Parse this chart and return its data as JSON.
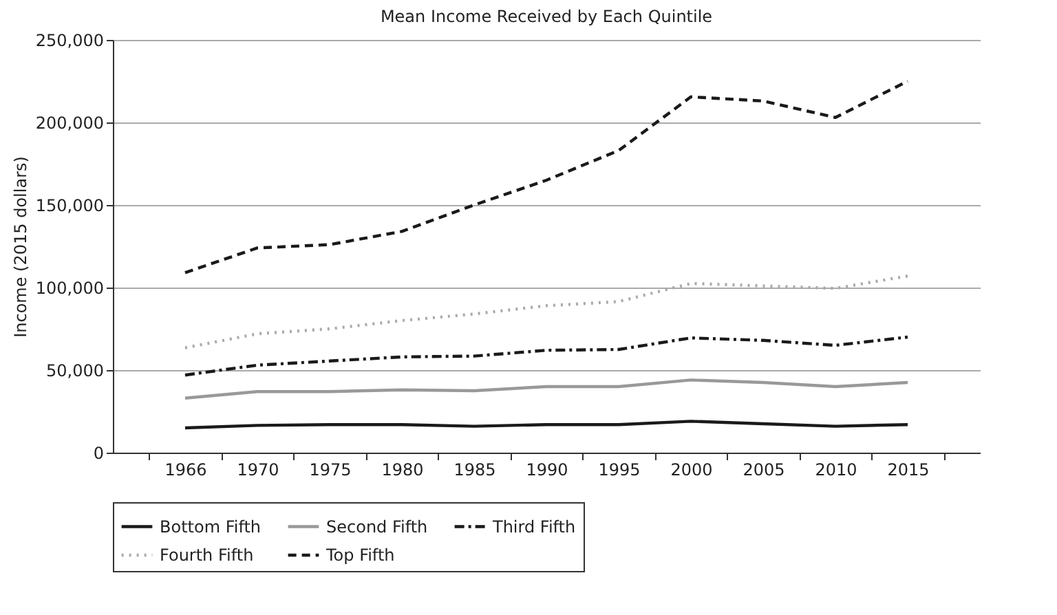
{
  "chart_data": {
    "type": "line",
    "title": "Mean Income Received by Each Quintile",
    "ylabel": "Income (2015 dollars)",
    "categories": [
      "1966",
      "1970",
      "1975",
      "1980",
      "1985",
      "1990",
      "1995",
      "2000",
      "2005",
      "2010",
      "2015"
    ],
    "series": [
      {
        "name": "Bottom Fifth",
        "color": "#1a1a1a",
        "line_style": "solid",
        "values": [
          15000,
          16500,
          17000,
          17000,
          16000,
          17000,
          17000,
          19000,
          17500,
          16000,
          17000
        ]
      },
      {
        "name": "Second Fifth",
        "color": "#999999",
        "line_style": "solid",
        "values": [
          33000,
          37000,
          37000,
          38000,
          37500,
          40000,
          40000,
          44000,
          42500,
          40000,
          42500
        ]
      },
      {
        "name": "Third Fifth",
        "color": "#1a1a1a",
        "line_style": "dashdot",
        "values": [
          47000,
          53000,
          55500,
          58000,
          58500,
          62000,
          62500,
          69500,
          68000,
          65000,
          70000
        ]
      },
      {
        "name": "Fourth Fifth",
        "color": "#aaaaaa",
        "line_style": "dotted",
        "values": [
          63500,
          72000,
          75000,
          80000,
          84000,
          89000,
          91500,
          102500,
          101000,
          99500,
          107000
        ]
      },
      {
        "name": "Top Fifth",
        "color": "#1a1a1a",
        "line_style": "dashed",
        "values": [
          109000,
          124000,
          126000,
          134000,
          150000,
          165000,
          183000,
          215500,
          213000,
          203000,
          225000
        ]
      }
    ],
    "ylim": [
      0,
      250000
    ],
    "yticks": [
      0,
      {
        "value": 50000,
        "label": "50,000"
      },
      {
        "value": 100000,
        "label": "100,000"
      },
      {
        "value": 150000,
        "label": "150,000"
      },
      {
        "value": 200000,
        "label": "200,000"
      },
      {
        "value": 250000,
        "label": "250,000"
      }
    ],
    "grid": "y",
    "legend": "bottom",
    "marker": "none"
  }
}
